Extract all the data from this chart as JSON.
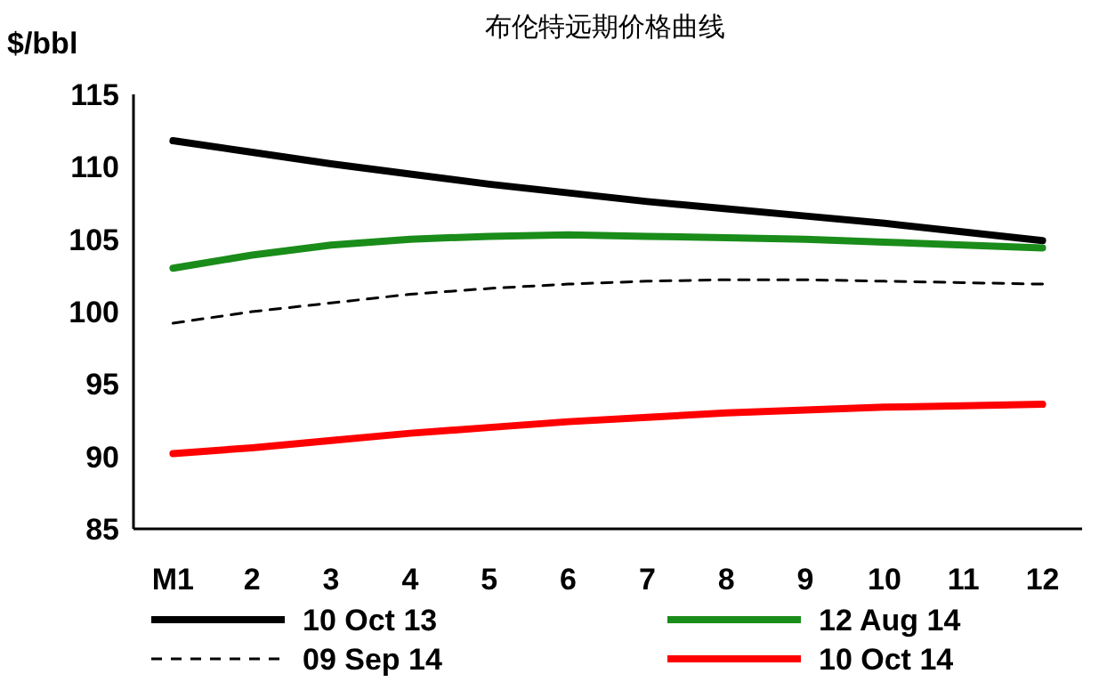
{
  "chart_data": {
    "type": "line",
    "title": "布伦特远期价格曲线",
    "ylabel": "$/bbl",
    "categories": [
      "M1",
      "2",
      "3",
      "4",
      "5",
      "6",
      "7",
      "8",
      "9",
      "10",
      "11",
      "12"
    ],
    "ylim": [
      85,
      115
    ],
    "yticks": [
      85,
      90,
      95,
      100,
      105,
      110,
      115
    ],
    "legend": "bottom",
    "series": [
      {
        "name": "10 Oct 13",
        "color": "#000000",
        "line_style": "solid",
        "values": [
          111.8,
          111.0,
          110.2,
          109.5,
          108.8,
          108.2,
          107.6,
          107.1,
          106.6,
          106.1,
          105.5,
          104.9
        ]
      },
      {
        "name": "12 Aug 14",
        "color": "#1a8c1a",
        "line_style": "solid",
        "values": [
          103.0,
          103.9,
          104.6,
          105.0,
          105.2,
          105.3,
          105.2,
          105.1,
          105.0,
          104.8,
          104.6,
          104.4
        ]
      },
      {
        "name": "09 Sep 14",
        "color": "#000000",
        "line_style": "dashed",
        "values": [
          99.2,
          100.0,
          100.6,
          101.2,
          101.6,
          101.9,
          102.1,
          102.2,
          102.2,
          102.1,
          102.0,
          101.9
        ]
      },
      {
        "name": "10 Oct 14",
        "color": "#ff0000",
        "line_style": "solid",
        "values": [
          90.2,
          90.6,
          91.1,
          91.6,
          92.0,
          92.4,
          92.7,
          93.0,
          93.2,
          93.4,
          93.5,
          93.6
        ]
      }
    ]
  }
}
